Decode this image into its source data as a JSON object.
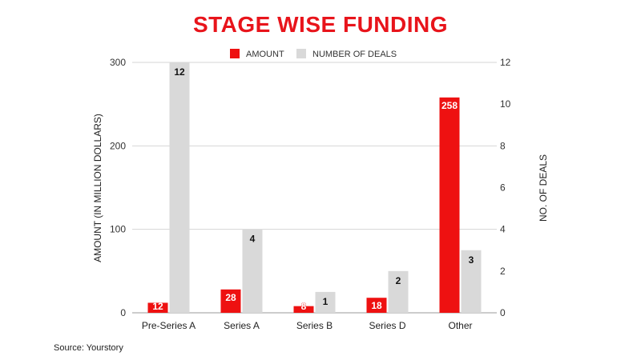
{
  "colors": {
    "amount": "#ee1111",
    "deals": "#d9d9d9",
    "title": "#e8141b",
    "grid": "#d6d6d6"
  },
  "source": "Source: Yourstory",
  "chart_data": {
    "type": "bar",
    "title": "STAGE WISE FUNDING",
    "categories": [
      "Pre-Series A",
      "Series A",
      "Series B",
      "Series D",
      "Other"
    ],
    "series": [
      {
        "name": "AMOUNT",
        "axis": "left",
        "values": [
          12,
          28,
          8,
          18,
          258
        ],
        "labels": [
          "12",
          "28",
          "8",
          "18",
          "258"
        ]
      },
      {
        "name": "NUMBER OF DEALS",
        "axis": "right",
        "values": [
          12,
          4,
          1,
          2,
          3
        ],
        "labels": [
          "12",
          "4",
          "1",
          "2",
          "3"
        ]
      }
    ],
    "ylabel": "AMOUNT (IN MILLION DOLLARS)",
    "y2label": "NO. OF DEALS",
    "ylim": [
      0,
      300
    ],
    "y2lim": [
      0,
      12
    ],
    "yticks": [
      "0",
      "100",
      "200",
      "300"
    ],
    "y2ticks": [
      "0",
      "2",
      "4",
      "6",
      "8",
      "10",
      "12"
    ],
    "legend_position": "top",
    "grid": true
  }
}
